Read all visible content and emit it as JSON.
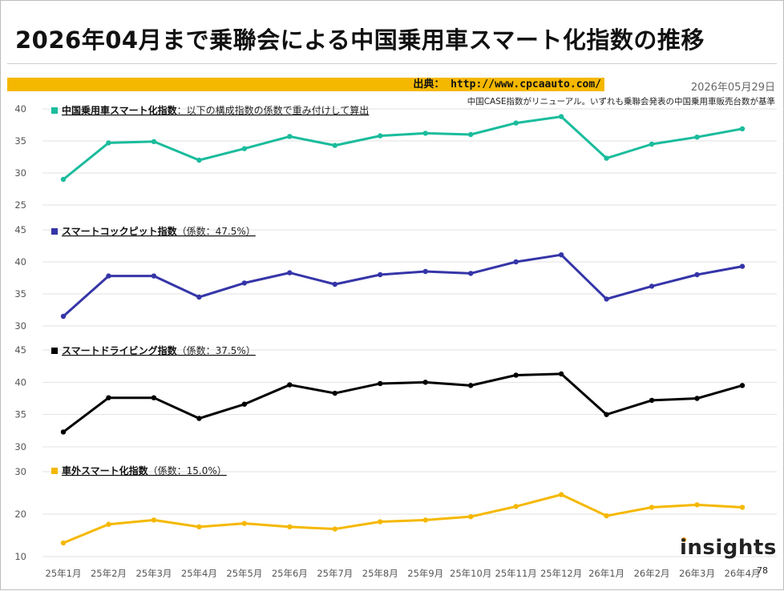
{
  "header": {
    "title": "2026年04月まで乗聯会による中国乗用車スマート化指数の推移",
    "source": "出典：  http://www.cpcaauto.com/",
    "date": "2026年05月29日",
    "note": "中国CASE指数がリニューアル。いずれも乗聯会発表の中国乗用車販売台数が基準"
  },
  "footer": {
    "page_number": "78",
    "logo": "insights"
  },
  "colors": {
    "source_bar": "#f5b800",
    "logo_dot": "#f08a00"
  },
  "chart_data": [
    {
      "type": "line",
      "name": "中国乗用車スマート化指数",
      "desc": "：以下の構成指数の係数で重み付けして算出",
      "color": "#1abc9c",
      "ylim": [
        25,
        40
      ],
      "yticks": [
        25,
        30,
        35,
        40
      ],
      "categories": [
        "25年1月",
        "25年2月",
        "25年3月",
        "25年4月",
        "25年5月",
        "25年6月",
        "25年7月",
        "25年8月",
        "25年9月",
        "25年10月",
        "25年11月",
        "25年12月",
        "26年1月",
        "26年2月",
        "26年3月",
        "26年4月"
      ],
      "values": [
        29.0,
        34.7,
        34.9,
        32.0,
        33.8,
        35.7,
        34.3,
        35.8,
        36.2,
        36.0,
        37.8,
        38.8,
        32.3,
        34.5,
        35.6,
        36.9
      ],
      "grid": true
    },
    {
      "type": "line",
      "name": "スマートコックピット指数",
      "desc": "（係数：47.5%）",
      "color": "#3535a8",
      "ylim": [
        30,
        45
      ],
      "yticks": [
        30,
        35,
        40,
        45
      ],
      "categories": [
        "25年1月",
        "25年2月",
        "25年3月",
        "25年4月",
        "25年5月",
        "25年6月",
        "25年7月",
        "25年8月",
        "25年9月",
        "25年10月",
        "25年11月",
        "25年12月",
        "26年1月",
        "26年2月",
        "26年3月",
        "26年4月"
      ],
      "values": [
        31.5,
        37.8,
        37.8,
        34.5,
        36.7,
        38.3,
        36.5,
        38.0,
        38.5,
        38.2,
        40.0,
        41.1,
        34.2,
        36.2,
        38.0,
        39.3
      ],
      "grid": true
    },
    {
      "type": "line",
      "name": "スマートドライビング指数",
      "desc": "（係数：37.5%）",
      "color": "#000000",
      "ylim": [
        30,
        45
      ],
      "yticks": [
        30,
        35,
        40,
        45
      ],
      "categories": [
        "25年1月",
        "25年2月",
        "25年3月",
        "25年4月",
        "25年5月",
        "25年6月",
        "25年7月",
        "25年8月",
        "25年9月",
        "25年10月",
        "25年11月",
        "25年12月",
        "26年1月",
        "26年2月",
        "26年3月",
        "26年4月"
      ],
      "values": [
        32.3,
        37.6,
        37.6,
        34.4,
        36.6,
        39.6,
        38.3,
        39.8,
        40.0,
        39.5,
        41.1,
        41.3,
        35.0,
        37.2,
        37.5,
        39.5
      ],
      "grid": true
    },
    {
      "type": "line",
      "name": "車外スマート化指数",
      "desc": "（係数：15.0%）",
      "color": "#f5b800",
      "ylim": [
        10,
        30
      ],
      "yticks": [
        10,
        20,
        30
      ],
      "categories": [
        "25年1月",
        "25年2月",
        "25年3月",
        "25年4月",
        "25年5月",
        "25年6月",
        "25年7月",
        "25年8月",
        "25年9月",
        "25年10月",
        "25年11月",
        "25年12月",
        "26年1月",
        "26年2月",
        "26年3月",
        "26年4月"
      ],
      "values": [
        13.2,
        17.6,
        18.6,
        17.0,
        17.8,
        17.0,
        16.5,
        18.2,
        18.6,
        19.4,
        21.8,
        24.6,
        19.6,
        21.6,
        22.2,
        21.6
      ],
      "grid": true
    }
  ]
}
